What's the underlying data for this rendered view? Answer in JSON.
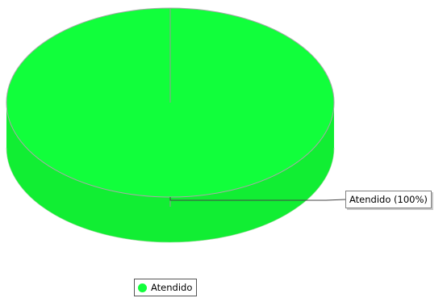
{
  "chart_data": {
    "type": "pie",
    "style": "3d",
    "categories": [
      "Atendido"
    ],
    "values": [
      100
    ],
    "slice_labels": [
      "Atendido (100%)"
    ],
    "colors": [
      "#11ff3b"
    ],
    "side_color": "#11ee33",
    "title": "",
    "legend_position": "bottom-center"
  }
}
